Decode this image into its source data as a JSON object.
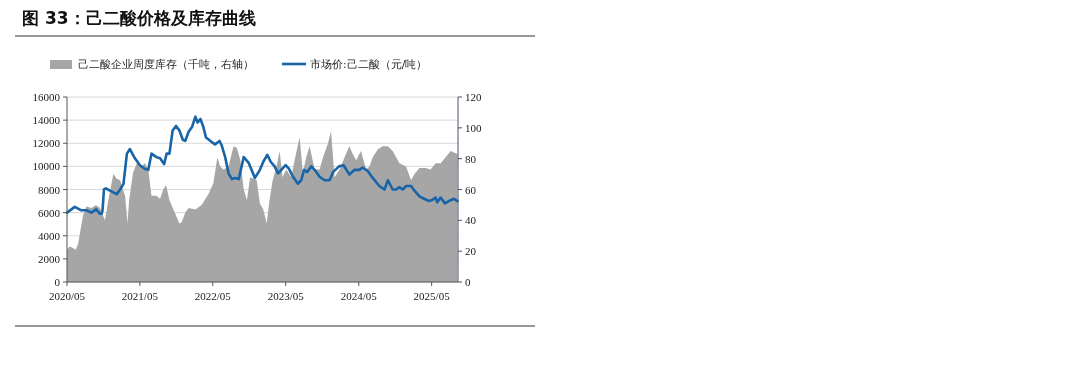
{
  "chart_data": {
    "type": "line",
    "title": "图 33：己二酸价格及库存曲线",
    "xlim": [
      "2020-05-01",
      "2025-09-10"
    ],
    "xticks": [
      {
        "value": "2020-05",
        "label": "2020/05"
      },
      {
        "value": "2021-05",
        "label": "2021/05"
      },
      {
        "value": "2022-05",
        "label": "2022/05"
      },
      {
        "value": "2023-05",
        "label": "2023/05"
      },
      {
        "value": "2024-05",
        "label": "2024/05"
      },
      {
        "value": "2025-05",
        "label": "2025/05"
      }
    ],
    "ylim": [
      0,
      16000
    ],
    "yticks": [
      0,
      2000,
      4000,
      6000,
      8000,
      10000,
      12000,
      14000,
      16000
    ],
    "y2lim": [
      0,
      120
    ],
    "y2ticks": [
      0,
      20,
      40,
      60,
      80,
      100,
      120
    ],
    "grid": "y",
    "legend": "top",
    "series": [
      {
        "name": "己二酸企业周度库存（千吨，右轴）",
        "type": "area",
        "axis": "y2",
        "color": "#a6a6a6",
        "x": [
          "2020-05-01",
          "2020-05-14",
          "2020-05-31",
          "2020-06-14",
          "2020-06-26",
          "2020-07-20",
          "2020-08-06",
          "2020-09-01",
          "2020-09-23",
          "2020-10-13",
          "2020-11-07",
          "2020-11-24",
          "2020-12-19",
          "2021-01-05",
          "2021-01-22",
          "2021-02-05",
          "2021-02-16",
          "2021-02-28",
          "2021-03-08",
          "2021-03-28",
          "2021-04-22",
          "2021-05-09",
          "2021-05-26",
          "2021-06-12",
          "2021-06-28",
          "2021-07-23",
          "2021-08-10",
          "2021-08-26",
          "2021-09-09",
          "2021-09-26",
          "2021-10-16",
          "2021-11-15",
          "2021-11-27",
          "2021-12-14",
          "2021-12-31",
          "2022-02-03",
          "2022-03-06",
          "2022-04-09",
          "2022-05-04",
          "2022-05-24",
          "2022-06-07",
          "2022-06-24",
          "2022-07-19",
          "2022-08-13",
          "2022-08-30",
          "2022-09-16",
          "2022-10-03",
          "2022-10-19",
          "2022-11-04",
          "2022-12-07",
          "2022-12-23",
          "2023-01-09",
          "2023-01-26",
          "2023-02-09",
          "2023-02-25",
          "2023-03-16",
          "2023-04-01",
          "2023-04-15",
          "2023-05-04",
          "2023-05-29",
          "2023-06-15",
          "2023-07-10",
          "2023-07-26",
          "2023-08-12",
          "2023-08-29",
          "2023-09-23",
          "2023-10-18",
          "2023-11-04",
          "2023-11-29",
          "2023-12-14",
          "2024-01-01",
          "2024-01-26",
          "2024-02-20",
          "2024-03-15",
          "2024-04-01",
          "2024-04-18",
          "2024-05-12",
          "2024-06-07",
          "2024-06-24",
          "2024-07-10",
          "2024-08-04",
          "2024-08-29",
          "2024-09-24",
          "2024-10-18",
          "2024-11-21",
          "2024-12-24",
          "2025-01-18",
          "2025-02-04",
          "2025-03-01",
          "2025-04-01",
          "2025-04-26",
          "2025-05-21",
          "2025-06-15",
          "2025-07-10",
          "2025-08-04",
          "2025-09-07"
        ],
        "values": [
          21,
          23,
          22,
          21,
          25,
          43,
          49,
          48,
          50,
          48,
          40,
          53,
          70,
          67,
          66,
          60,
          56,
          38,
          53,
          71,
          79,
          75,
          77,
          73,
          56,
          56,
          54,
          60,
          63,
          53,
          47,
          38,
          39,
          45,
          48,
          47,
          50,
          57,
          64,
          81,
          75,
          73,
          75,
          88,
          87,
          79,
          60,
          53,
          68,
          66,
          51,
          47,
          38,
          53,
          66,
          75,
          85,
          68,
          73,
          68,
          79,
          94,
          71,
          81,
          88,
          73,
          73,
          81,
          90,
          98,
          68,
          73,
          81,
          88,
          83,
          79,
          85,
          73,
          75,
          81,
          86,
          88,
          88,
          85,
          77,
          75,
          66,
          70,
          74,
          74,
          73,
          77,
          77,
          81,
          85,
          83
        ]
      },
      {
        "name": "市场价:己二酸（元/吨）",
        "axis": "y",
        "color": "#1765a8",
        "x": [
          "2020-05-01",
          "2020-06-09",
          "2020-07-12",
          "2020-08-06",
          "2020-09-01",
          "2020-09-23",
          "2020-10-13",
          "2020-10-21",
          "2020-10-26",
          "2020-11-02",
          "2020-11-12",
          "2020-12-02",
          "2021-01-05",
          "2021-01-22",
          "2021-02-08",
          "2021-02-25",
          "2021-03-12",
          "2021-04-06",
          "2021-05-01",
          "2021-05-25",
          "2021-06-12",
          "2021-06-28",
          "2021-07-23",
          "2021-08-10",
          "2021-08-30",
          "2021-09-12",
          "2021-09-26",
          "2021-10-12",
          "2021-10-29",
          "2021-11-15",
          "2021-12-02",
          "2021-12-14",
          "2021-12-31",
          "2022-01-17",
          "2022-02-03",
          "2022-02-14",
          "2022-02-28",
          "2022-03-15",
          "2022-03-28",
          "2022-04-26",
          "2022-05-12",
          "2022-06-04",
          "2022-06-15",
          "2022-07-02",
          "2022-07-19",
          "2022-08-05",
          "2022-08-22",
          "2022-09-08",
          "2022-10-03",
          "2022-10-28",
          "2022-11-28",
          "2022-12-23",
          "2023-01-09",
          "2023-01-29",
          "2023-02-15",
          "2023-03-07",
          "2023-03-24",
          "2023-04-09",
          "2023-05-01",
          "2023-05-17",
          "2023-06-07",
          "2023-07-01",
          "2023-07-18",
          "2023-08-01",
          "2023-08-16",
          "2023-09-07",
          "2023-09-23",
          "2023-10-18",
          "2023-11-12",
          "2023-12-07",
          "2023-12-24",
          "2024-01-23",
          "2024-02-15",
          "2024-03-15",
          "2024-04-10",
          "2024-05-04",
          "2024-05-21",
          "2024-06-15",
          "2024-07-10",
          "2024-08-12",
          "2024-09-07",
          "2024-09-24",
          "2024-10-18",
          "2024-11-04",
          "2024-11-21",
          "2024-12-07",
          "2024-12-24",
          "2025-01-18",
          "2025-02-04",
          "2025-03-01",
          "2025-03-24",
          "2025-04-18",
          "2025-05-04",
          "2025-05-21",
          "2025-05-29",
          "2025-06-15",
          "2025-07-07",
          "2025-07-26",
          "2025-08-21",
          "2025-09-07"
        ],
        "values": [
          6000,
          6500,
          6200,
          6200,
          6000,
          6300,
          5900,
          5900,
          6200,
          8000,
          8100,
          7900,
          7600,
          8000,
          8500,
          11100,
          11500,
          10700,
          10100,
          9800,
          9700,
          11100,
          10800,
          10700,
          10200,
          11100,
          11100,
          13100,
          13500,
          13100,
          12300,
          12200,
          13000,
          13400,
          14300,
          13800,
          14100,
          13400,
          12500,
          12100,
          11900,
          12200,
          11800,
          10800,
          9400,
          8900,
          9000,
          8900,
          10800,
          10300,
          9000,
          9700,
          10400,
          11000,
          10400,
          10000,
          9400,
          9700,
          10100,
          9800,
          9100,
          8500,
          8800,
          9700,
          9500,
          10000,
          9700,
          9100,
          8800,
          8800,
          9500,
          10000,
          10100,
          9300,
          9700,
          9700,
          9900,
          9600,
          9000,
          8300,
          8000,
          8800,
          8000,
          8000,
          8200,
          8000,
          8300,
          8300,
          7900,
          7400,
          7200,
          7000,
          7100,
          7300,
          6900,
          7300,
          6800,
          7000,
          7200,
          7000
        ]
      }
    ]
  }
}
